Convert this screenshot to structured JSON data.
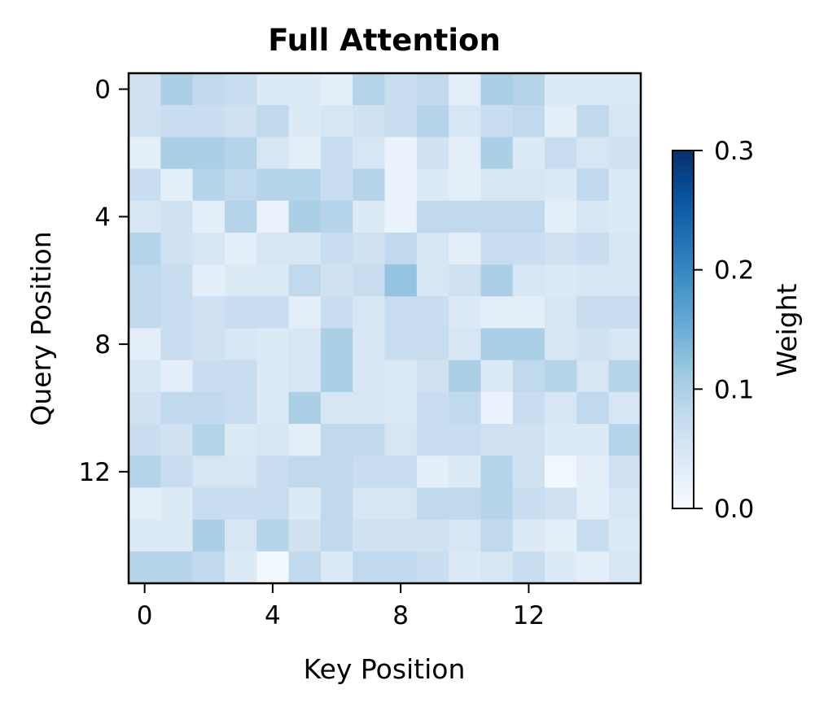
{
  "chart_data": {
    "type": "heatmap",
    "title": "Full Attention",
    "xlabel": "Key Position",
    "ylabel": "Query Position",
    "x_ticks": [
      0,
      4,
      8,
      12
    ],
    "y_ticks": [
      0,
      4,
      8,
      12
    ],
    "colorbar": {
      "label": "Weight",
      "range": [
        0.0,
        0.3
      ],
      "ticks": [
        0.0,
        0.1,
        0.2,
        0.3
      ],
      "tick_labels": [
        "0.0",
        "0.1",
        "0.2",
        "0.3"
      ],
      "colormap": "Blues"
    },
    "grid": false,
    "values": [
      [
        0.06,
        0.1,
        0.08,
        0.07,
        0.04,
        0.04,
        0.03,
        0.09,
        0.07,
        0.08,
        0.03,
        0.1,
        0.09,
        0.04,
        0.04,
        0.04
      ],
      [
        0.06,
        0.07,
        0.07,
        0.06,
        0.08,
        0.04,
        0.05,
        0.06,
        0.07,
        0.09,
        0.05,
        0.07,
        0.08,
        0.03,
        0.08,
        0.05
      ],
      [
        0.03,
        0.1,
        0.1,
        0.09,
        0.05,
        0.03,
        0.07,
        0.05,
        0.02,
        0.06,
        0.03,
        0.1,
        0.04,
        0.07,
        0.05,
        0.06
      ],
      [
        0.07,
        0.03,
        0.09,
        0.08,
        0.09,
        0.09,
        0.07,
        0.09,
        0.02,
        0.04,
        0.03,
        0.05,
        0.05,
        0.04,
        0.08,
        0.04
      ],
      [
        0.05,
        0.06,
        0.03,
        0.09,
        0.02,
        0.1,
        0.09,
        0.04,
        0.02,
        0.08,
        0.08,
        0.08,
        0.08,
        0.03,
        0.05,
        0.04
      ],
      [
        0.09,
        0.06,
        0.05,
        0.03,
        0.05,
        0.05,
        0.07,
        0.06,
        0.08,
        0.05,
        0.03,
        0.07,
        0.07,
        0.06,
        0.07,
        0.05
      ],
      [
        0.08,
        0.07,
        0.03,
        0.04,
        0.04,
        0.08,
        0.06,
        0.07,
        0.12,
        0.05,
        0.06,
        0.1,
        0.05,
        0.04,
        0.05,
        0.05
      ],
      [
        0.08,
        0.07,
        0.06,
        0.07,
        0.07,
        0.03,
        0.07,
        0.05,
        0.07,
        0.07,
        0.04,
        0.03,
        0.03,
        0.05,
        0.07,
        0.07
      ],
      [
        0.03,
        0.07,
        0.06,
        0.05,
        0.04,
        0.05,
        0.1,
        0.05,
        0.07,
        0.07,
        0.05,
        0.1,
        0.1,
        0.05,
        0.06,
        0.05
      ],
      [
        0.05,
        0.03,
        0.07,
        0.07,
        0.04,
        0.05,
        0.1,
        0.05,
        0.04,
        0.06,
        0.1,
        0.04,
        0.08,
        0.09,
        0.05,
        0.09
      ],
      [
        0.06,
        0.08,
        0.08,
        0.07,
        0.04,
        0.1,
        0.05,
        0.05,
        0.04,
        0.07,
        0.08,
        0.02,
        0.07,
        0.05,
        0.08,
        0.05
      ],
      [
        0.07,
        0.06,
        0.09,
        0.04,
        0.05,
        0.03,
        0.08,
        0.08,
        0.05,
        0.07,
        0.07,
        0.06,
        0.06,
        0.04,
        0.04,
        0.09
      ],
      [
        0.09,
        0.07,
        0.05,
        0.05,
        0.07,
        0.08,
        0.08,
        0.07,
        0.07,
        0.03,
        0.04,
        0.09,
        0.06,
        0.01,
        0.03,
        0.06
      ],
      [
        0.03,
        0.04,
        0.07,
        0.07,
        0.07,
        0.04,
        0.08,
        0.05,
        0.05,
        0.08,
        0.08,
        0.09,
        0.07,
        0.06,
        0.03,
        0.05
      ],
      [
        0.04,
        0.04,
        0.1,
        0.05,
        0.09,
        0.06,
        0.08,
        0.06,
        0.06,
        0.06,
        0.05,
        0.08,
        0.04,
        0.03,
        0.07,
        0.04
      ],
      [
        0.09,
        0.09,
        0.08,
        0.04,
        0.01,
        0.08,
        0.04,
        0.08,
        0.08,
        0.07,
        0.04,
        0.05,
        0.07,
        0.04,
        0.03,
        0.05
      ]
    ]
  }
}
